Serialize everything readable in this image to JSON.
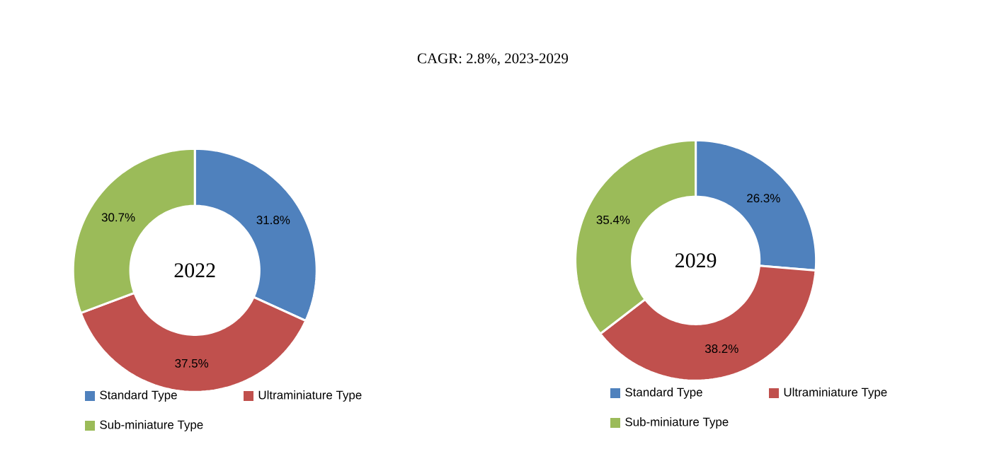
{
  "chart_data": [
    {
      "type": "donut",
      "title": "2022",
      "annotations": [
        "CAGR:   2.8%, 2023-2029"
      ],
      "categories": [
        "Standard Type",
        "Ultraminiature Type",
        "Sub-miniature Type"
      ],
      "values": [
        31.8,
        37.5,
        30.7
      ],
      "value_labels": [
        "31.8%",
        "37.5%",
        "30.7%"
      ],
      "colors": [
        "#4f81bd",
        "#c0504d",
        "#9bbb59"
      ],
      "legend": "bottom"
    },
    {
      "type": "donut",
      "title": "2029",
      "categories": [
        "Standard Type",
        "Ultraminiature Type",
        "Sub-miniature Type"
      ],
      "values": [
        26.3,
        38.2,
        35.4
      ],
      "value_labels": [
        "26.3%",
        "38.2%",
        "35.4%"
      ],
      "colors": [
        "#4f81bd",
        "#c0504d",
        "#9bbb59"
      ],
      "legend": "bottom"
    }
  ]
}
